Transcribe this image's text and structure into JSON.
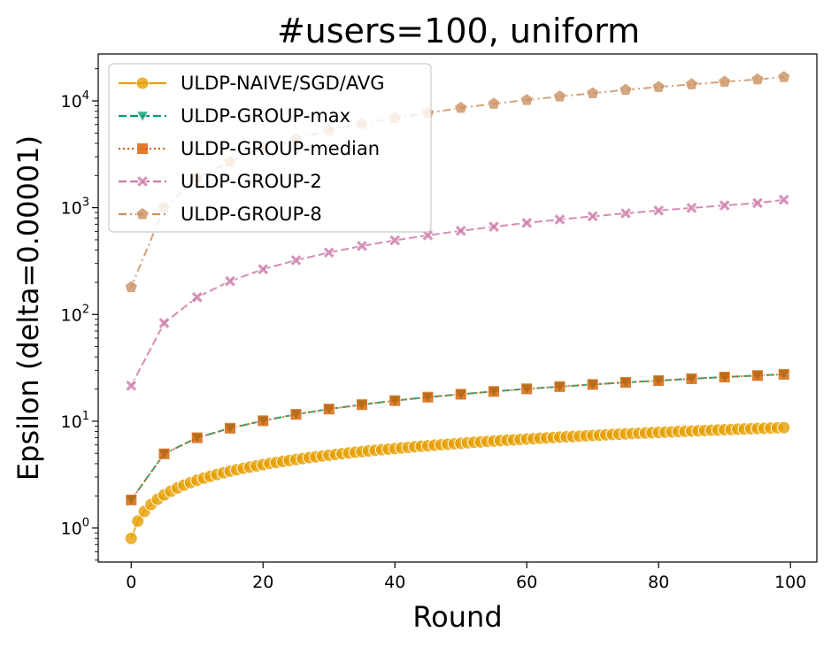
{
  "chart_data": {
    "type": "line",
    "title": "#users=100, uniform",
    "xlabel": "Round",
    "ylabel": "Epsilon (delta=0.00001)",
    "xlim": [
      -5,
      104
    ],
    "ylim": [
      0.48,
      27500
    ],
    "yscale": "log",
    "grid": false,
    "legend_position": "top-left",
    "x_ticks": [
      {
        "value": 0,
        "label": "0"
      },
      {
        "value": 20,
        "label": "20"
      },
      {
        "value": 40,
        "label": "40"
      },
      {
        "value": 60,
        "label": "60"
      },
      {
        "value": 80,
        "label": "80"
      },
      {
        "value": 100,
        "label": "100"
      }
    ],
    "y_ticks": [
      {
        "value": 1,
        "base": "10",
        "exp": "0"
      },
      {
        "value": 10,
        "base": "10",
        "exp": "1"
      },
      {
        "value": 100,
        "base": "10",
        "exp": "2"
      },
      {
        "value": 1000,
        "base": "10",
        "exp": "3"
      },
      {
        "value": 10000,
        "base": "10",
        "exp": "4"
      }
    ],
    "series": [
      {
        "name": "ULDP-NAIVE/SGD/AVG",
        "color": "#e69f00",
        "marker": "circle",
        "dash": "solid",
        "x": [
          0,
          1,
          2,
          3,
          4,
          5,
          6,
          7,
          8,
          9,
          10,
          11,
          12,
          13,
          14,
          15,
          16,
          17,
          18,
          19,
          20,
          21,
          22,
          23,
          24,
          25,
          26,
          27,
          28,
          29,
          30,
          31,
          32,
          33,
          34,
          35,
          36,
          37,
          38,
          39,
          40,
          41,
          42,
          43,
          44,
          45,
          46,
          47,
          48,
          49,
          50,
          51,
          52,
          53,
          54,
          55,
          56,
          57,
          58,
          59,
          60,
          61,
          62,
          63,
          64,
          65,
          66,
          67,
          68,
          69,
          70,
          71,
          72,
          73,
          74,
          75,
          76,
          77,
          78,
          79,
          80,
          81,
          82,
          83,
          84,
          85,
          86,
          87,
          88,
          89,
          90,
          91,
          92,
          93,
          94,
          95,
          96,
          97,
          98,
          99
        ],
        "y": [
          0.8,
          1.16,
          1.43,
          1.66,
          1.86,
          2.04,
          2.21,
          2.37,
          2.52,
          2.66,
          2.8,
          2.93,
          3.05,
          3.17,
          3.29,
          3.4,
          3.51,
          3.62,
          3.72,
          3.82,
          3.92,
          4.02,
          4.11,
          4.2,
          4.29,
          4.38,
          4.47,
          4.56,
          4.64,
          4.72,
          4.8,
          4.88,
          4.96,
          5.04,
          5.12,
          5.19,
          5.27,
          5.34,
          5.41,
          5.48,
          5.55,
          5.62,
          5.69,
          5.76,
          5.83,
          5.89,
          5.96,
          6.02,
          6.09,
          6.15,
          6.21,
          6.28,
          6.34,
          6.4,
          6.46,
          6.52,
          6.58,
          6.64,
          6.69,
          6.75,
          6.81,
          6.86,
          6.92,
          6.98,
          7.03,
          7.09,
          7.14,
          7.19,
          7.25,
          7.3,
          7.35,
          7.4,
          7.46,
          7.51,
          7.56,
          7.61,
          7.66,
          7.71,
          7.76,
          7.81,
          7.85,
          7.9,
          7.95,
          8.0,
          8.04,
          8.09,
          8.14,
          8.18,
          8.23,
          8.27,
          8.32,
          8.36,
          8.41,
          8.45,
          8.5,
          8.54,
          8.58,
          8.63,
          8.67,
          8.71
        ]
      },
      {
        "name": "ULDP-GROUP-max",
        "color": "#009e73",
        "marker": "triangle-down",
        "dash": "dashed",
        "x": [
          0,
          5,
          10,
          15,
          20,
          25,
          30,
          35,
          40,
          45,
          50,
          55,
          60,
          65,
          70,
          75,
          80,
          85,
          90,
          95,
          99
        ],
        "y": [
          1.83,
          4.95,
          7.0,
          8.6,
          10.1,
          11.6,
          13.0,
          14.3,
          15.6,
          16.8,
          17.9,
          19.0,
          20.1,
          21.1,
          22.1,
          23.1,
          24.0,
          25.0,
          25.9,
          26.8,
          27.5
        ]
      },
      {
        "name": "ULDP-GROUP-median",
        "color": "#d55e00",
        "marker": "square",
        "dash": "dotted",
        "x": [
          0,
          5,
          10,
          15,
          20,
          25,
          30,
          35,
          40,
          45,
          50,
          55,
          60,
          65,
          70,
          75,
          80,
          85,
          90,
          95,
          99
        ],
        "y": [
          1.83,
          4.95,
          7.0,
          8.6,
          10.1,
          11.6,
          13.0,
          14.3,
          15.6,
          16.8,
          17.9,
          19.0,
          20.1,
          21.1,
          22.1,
          23.1,
          24.0,
          25.0,
          25.9,
          26.8,
          27.5
        ]
      },
      {
        "name": "ULDP-GROUP-2",
        "color": "#cc79a7",
        "marker": "x",
        "dash": "dashed",
        "x": [
          0,
          5,
          10,
          15,
          20,
          25,
          30,
          35,
          40,
          45,
          50,
          55,
          60,
          65,
          70,
          75,
          80,
          85,
          90,
          95,
          99
        ],
        "y": [
          21.5,
          83,
          145,
          205,
          265,
          322,
          380,
          438,
          494,
          551,
          607,
          663,
          720,
          775,
          830,
          885,
          940,
          995,
          1050,
          1105,
          1185
        ]
      },
      {
        "name": "ULDP-GROUP-8",
        "color": "#ca9161",
        "marker": "pentagon",
        "dash": "dashdot",
        "x": [
          0,
          5,
          10,
          15,
          20,
          25,
          30,
          35,
          40,
          45,
          50,
          55,
          60,
          65,
          70,
          75,
          80,
          85,
          90,
          95,
          99
        ],
        "y": [
          180,
          1000,
          1900,
          2700,
          3600,
          4400,
          5300,
          6100,
          6900,
          7700,
          8600,
          9400,
          10200,
          11000,
          11800,
          12700,
          13500,
          14300,
          15100,
          15900,
          16700
        ]
      }
    ]
  }
}
